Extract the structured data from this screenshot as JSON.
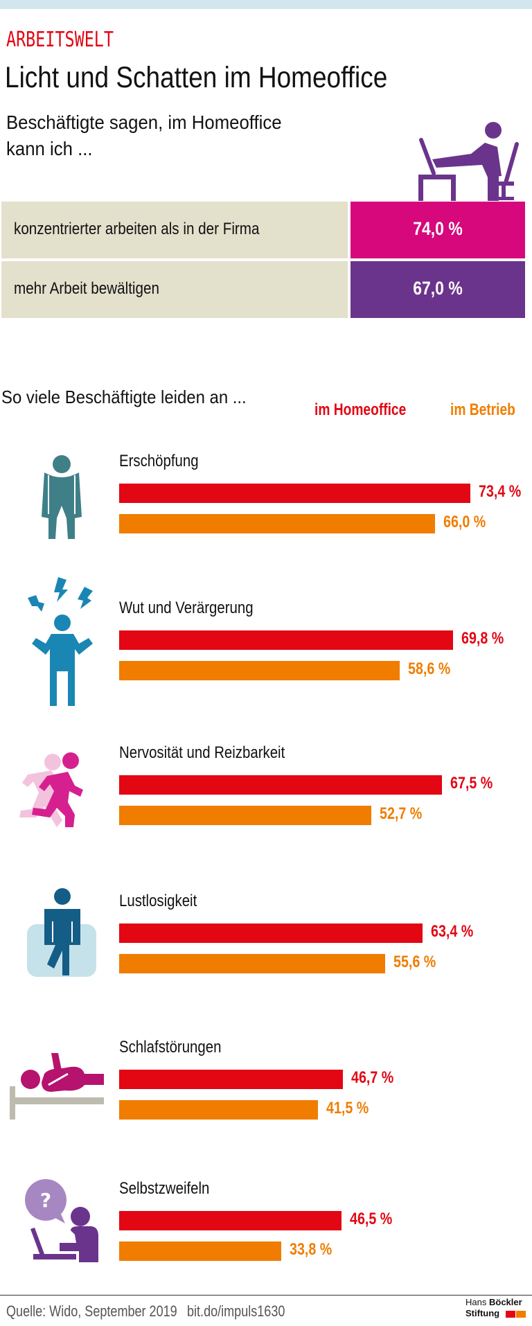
{
  "header": {
    "kicker": "ARBEITSWELT",
    "title": "Licht und Schatten im Homeoffice",
    "intro_line1": "Beschäftigte sagen, im Homeoffice",
    "intro_line2": "kann ich ..."
  },
  "stats": [
    {
      "label": "konzentrierter arbeiten als in der Firma",
      "value": "74,0 %",
      "color": "#d6087c"
    },
    {
      "label": "mehr Arbeit bewältigen",
      "value": "67,0 %",
      "color": "#6b348c"
    }
  ],
  "section": {
    "title": "So viele Beschäftigte leiden an ...",
    "legend_home": "im Homeoffice",
    "legend_work": "im Betrieb"
  },
  "colors": {
    "home": "#e30613",
    "work": "#f07d00",
    "stat_label_bg": "#e3e0cc",
    "top_band": "#d2e6ee"
  },
  "chart_data": {
    "type": "bar",
    "orientation": "horizontal",
    "title": "So viele Beschäftigte leiden an ...",
    "xlabel": "",
    "ylabel": "",
    "unit": "%",
    "xlim": [
      0,
      100
    ],
    "grid": false,
    "legend": "top-right",
    "categories": [
      "Erschöpfung",
      "Wut und Verärgerung",
      "Nervosität und Reizbarkeit",
      "Lustlosigkeit",
      "Schlafstörungen",
      "Selbstzweifeln"
    ],
    "icons": [
      "exhausted-person-icon",
      "angry-person-icon",
      "running-person-icon",
      "listless-person-icon",
      "sleeping-person-icon",
      "self-doubt-person-icon"
    ],
    "series": [
      {
        "name": "im Homeoffice",
        "values": [
          73.4,
          69.8,
          67.5,
          63.4,
          46.7,
          46.5
        ],
        "labels": [
          "73,4 %",
          "69,8 %",
          "67,5 %",
          "63,4 %",
          "46,7 %",
          "46,5 %"
        ]
      },
      {
        "name": "im Betrieb",
        "values": [
          66.0,
          58.6,
          52.7,
          55.6,
          41.5,
          33.8
        ],
        "labels": [
          "66,0 %",
          "58,6 %",
          "52,7 %",
          "55,6 %",
          "41,5 %",
          "33,8 %"
        ]
      }
    ]
  },
  "footer": {
    "source": "Quelle: Wido, September 2019",
    "link": "bit.do/impuls1630",
    "logo_line1_a": "Hans",
    "logo_line1_b": "Böckler",
    "logo_line2": "Stiftung"
  }
}
